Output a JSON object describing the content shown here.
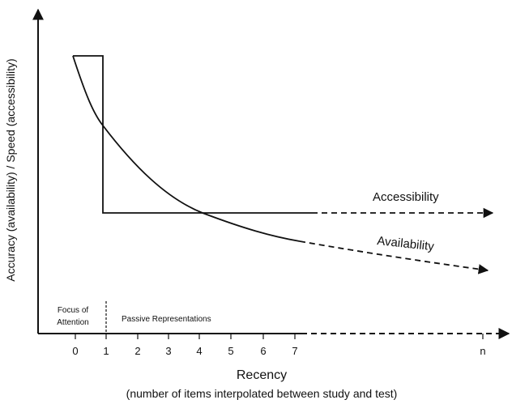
{
  "y_axis_label": "Accuracy (availability) / Speed (accessibility)",
  "x_axis_label": "Recency",
  "x_axis_sublabel": "(number of items interpolated between study and test)",
  "x_ticks": [
    "0",
    "1",
    "2",
    "3",
    "4",
    "5",
    "6",
    "7",
    "n"
  ],
  "curves": {
    "accessibility": "Accessibility",
    "availability": "Availability"
  },
  "regions": {
    "focus": [
      "Focus of",
      "Attention"
    ],
    "passive": "Passive Representations"
  }
}
